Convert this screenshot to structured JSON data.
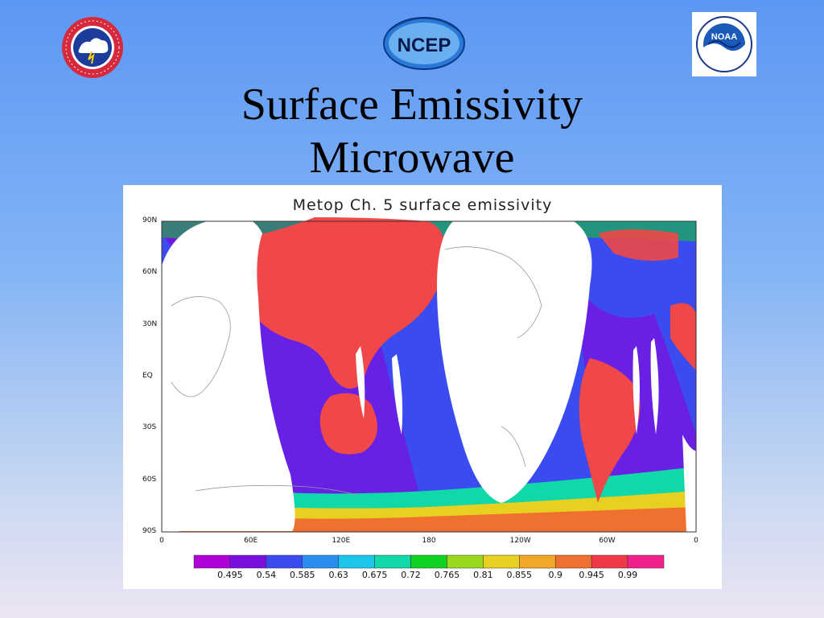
{
  "slide": {
    "title_line1": "Surface Emissivity",
    "title_line2": "Microwave",
    "logos": {
      "left": "national-weather-service-logo",
      "center": "ncep-logo",
      "center_text": "NCEP",
      "right": "noaa-logo",
      "right_text": "NOAA"
    }
  },
  "figure": {
    "title": "Metop Ch. 5 surface emissivity",
    "lat_labels": [
      "90N",
      "60N",
      "30N",
      "EQ",
      "30S",
      "60S",
      "90S"
    ],
    "lon_labels": [
      "0",
      "60E",
      "120E",
      "180",
      "120W",
      "60W",
      "0"
    ],
    "colorbar": {
      "labels": [
        "0.495",
        "0.54",
        "0.585",
        "0.63",
        "0.675",
        "0.72",
        "0.765",
        "0.81",
        "0.855",
        "0.9",
        "0.945",
        "0.99"
      ],
      "colors": [
        "#b000d8",
        "#7a10e0",
        "#3a4cf0",
        "#2a8ef0",
        "#1cc6e8",
        "#10d8a8",
        "#10d020",
        "#9ad820",
        "#e8d020",
        "#f0a828",
        "#f07030",
        "#f03848",
        "#f0208c"
      ]
    },
    "colors": {
      "ocean_low": "#7a10e0",
      "ocean_mid": "#3a4cf0",
      "land_high": "#f04848",
      "ice": "#10d8a8",
      "no_data": "#ffffff"
    }
  }
}
